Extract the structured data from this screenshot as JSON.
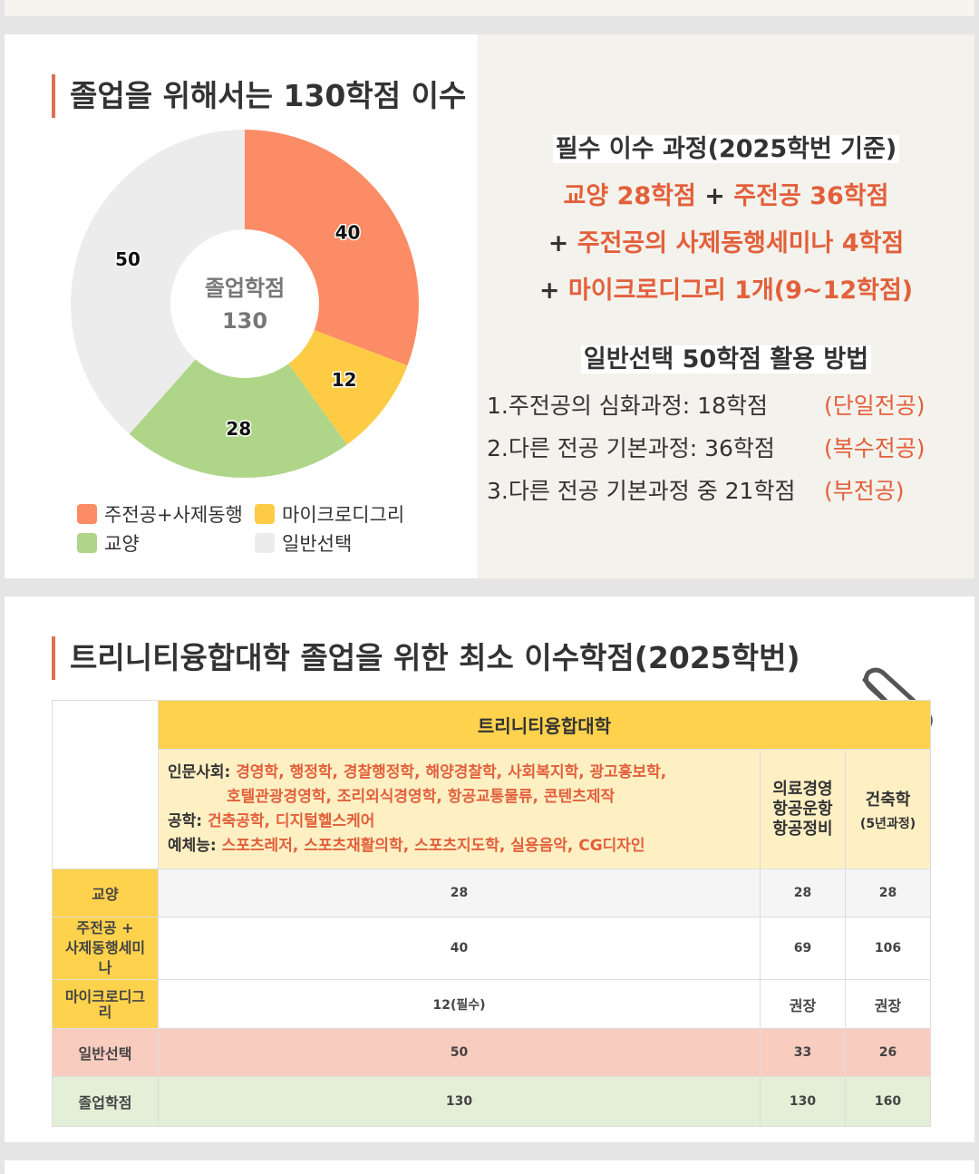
{
  "section1": {
    "title": "졸업을 위해서는 130학점 이수",
    "donut": {
      "center_label": "졸업학점",
      "center_value": "130",
      "segments": [
        {
          "name": "주전공+사제동행",
          "value": 40,
          "label": "40",
          "color": "#fb8c66"
        },
        {
          "name": "마이크로디그리",
          "value": 12,
          "label": "12",
          "color": "#fecb45"
        },
        {
          "name": "교양",
          "value": 28,
          "label": "28",
          "color": "#afd588"
        },
        {
          "name": "일반선택",
          "value": 50,
          "label": "50",
          "color": "#ececec"
        }
      ]
    },
    "legend": [
      "주전공+사제동행",
      "마이크로디그리",
      "교양",
      "일반선택"
    ],
    "required": {
      "heading": "필수 이수 과정(2025학번 기준)",
      "line1_a": "교양 28학점",
      "line1_plus": " + ",
      "line1_b": "주전공 36학점",
      "line2_plus": "+ ",
      "line2_text": "주전공의 사제동행세미나 4학점",
      "line3_plus": "+ ",
      "line3_text": "마이크로디그리 1개(9~12학점)"
    },
    "elective": {
      "heading": "일반선택 50학점 활용 방법",
      "items": [
        {
          "text": "1.주전공의 심화과정: 18학점",
          "tag": "(단일전공)"
        },
        {
          "text": "2.다른 전공 기본과정: 36학점",
          "tag": "(복수전공)"
        },
        {
          "text": "3.다른 전공 기본과정 중 21학점",
          "tag": "(부전공)"
        }
      ]
    }
  },
  "section2": {
    "title": "트리니티융합대학 졸업을 위한 최소 이수학점(2025학번)",
    "table": {
      "header": "트리니티융합대학",
      "group1": {
        "label1": "인문사회: ",
        "majors1": "경영학, 행정학, 경찰행정학, 해양경찰학, 사회복지학, 광고홍보학,",
        "majors1b": "호텔관광경영학, 조리외식경영학, 항공교통물류, 콘텐츠제작",
        "label2": "공학: ",
        "majors2": "건축공학, 디지털헬스케어",
        "label3": "예체능: ",
        "majors3": "스포츠레저, 스포츠재활의학, 스포츠지도학, 실용음악, CG디자인"
      },
      "group2": [
        "의료경영",
        "항공운항",
        "항공정비"
      ],
      "group3": {
        "name": "건축학",
        "note": "(5년과정)"
      },
      "rows": [
        {
          "label": "교양",
          "values": [
            "28",
            "28",
            "28"
          ]
        },
        {
          "label": "주전공 +\n사제동행세미\n나",
          "values": [
            "40",
            "69",
            "106"
          ]
        },
        {
          "label": "마이크로디그\n리",
          "values": [
            "12(필수)",
            "권장",
            "권장"
          ]
        },
        {
          "label": "일반선택",
          "values": [
            "50",
            "33",
            "26"
          ]
        },
        {
          "label": "졸업학점",
          "values": [
            "130",
            "130",
            "160"
          ]
        }
      ]
    }
  }
}
